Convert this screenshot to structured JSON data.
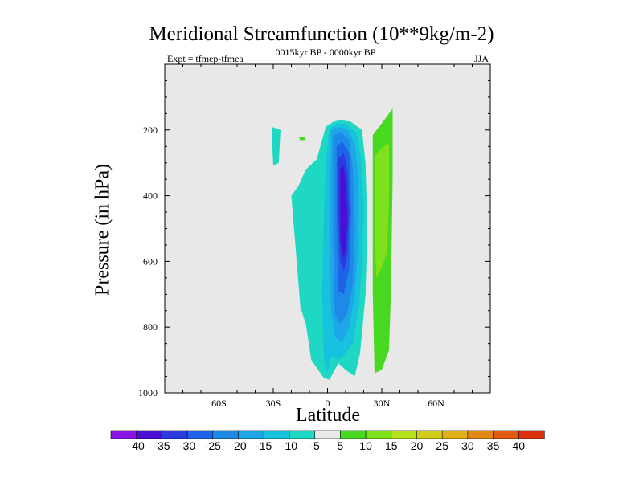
{
  "chart_data": {
    "type": "heatmap",
    "title": "Meridional Streamfunction (10**9kg/m-2)",
    "subtitle_left": "Expt = tfmep-tfmea",
    "subtitle_center": "0015kyr BP - 0000kyr BP",
    "subtitle_right": "JJA",
    "xlabel": "Latitude",
    "ylabel": "Pressure (in hPa)",
    "xlim": [
      -90,
      90
    ],
    "ylim": [
      1000,
      0
    ],
    "x_ticks": [
      {
        "value": -60,
        "label": "60S"
      },
      {
        "value": -30,
        "label": "30S"
      },
      {
        "value": 0,
        "label": "0"
      },
      {
        "value": 30,
        "label": "30N"
      },
      {
        "value": 60,
        "label": "60N"
      }
    ],
    "y_ticks": [
      200,
      400,
      600,
      800,
      1000
    ],
    "background_color": "#e8e8e8",
    "colorbar": {
      "levels": [
        -40,
        -35,
        -30,
        -25,
        -20,
        -15,
        -10,
        -5,
        5,
        10,
        15,
        20,
        25,
        30,
        35,
        40
      ],
      "colors": [
        "#8a14e6",
        "#4b0fd4",
        "#2a3ce0",
        "#1f64e8",
        "#1e8ae8",
        "#1ea6e6",
        "#17c2de",
        "#1ed8c4",
        "#e8e8e8",
        "#48d820",
        "#7fe01c",
        "#b4e01c",
        "#d0cc1a",
        "#e0b018",
        "#e08a14",
        "#e05a10",
        "#dc300c"
      ]
    },
    "regions": [
      {
        "level_index": 7,
        "lat": [
          -31,
          -26,
          -27,
          -30,
          -31
        ],
        "p": [
          190,
          200,
          300,
          310,
          190
        ]
      },
      {
        "level_index": 9,
        "lat": [
          -16,
          -13,
          -12,
          -15,
          -16
        ],
        "p": [
          220,
          222,
          230,
          232,
          220
        ]
      },
      {
        "level_index": 7,
        "lat": [
          -1,
          3,
          7,
          13,
          19,
          21,
          22,
          21,
          18,
          15,
          10,
          6,
          1,
          -2,
          -9,
          -12,
          -15,
          -20,
          -16,
          -12,
          -6,
          -3,
          -1
        ],
        "p": [
          190,
          175,
          170,
          175,
          200,
          300,
          500,
          700,
          880,
          950,
          930,
          910,
          960,
          955,
          900,
          790,
          740,
          400,
          370,
          320,
          290,
          230,
          190
        ]
      },
      {
        "level_index": 6,
        "lat": [
          1,
          5,
          10,
          16,
          19,
          20,
          19,
          17,
          14,
          10,
          6,
          2,
          0,
          -2,
          -3,
          -2,
          -1,
          1
        ],
        "p": [
          195,
          180,
          180,
          210,
          300,
          450,
          620,
          750,
          850,
          880,
          900,
          890,
          940,
          900,
          700,
          450,
          300,
          195
        ]
      },
      {
        "level_index": 5,
        "lat": [
          2,
          6,
          11,
          15,
          17,
          17,
          15,
          12,
          8,
          4,
          2,
          1,
          2
        ],
        "p": [
          200,
          190,
          200,
          240,
          350,
          550,
          700,
          800,
          850,
          830,
          750,
          500,
          200
        ]
      },
      {
        "level_index": 4,
        "lat": [
          3,
          7,
          12,
          14,
          15,
          14,
          11,
          7,
          4,
          3,
          3
        ],
        "p": [
          220,
          205,
          230,
          320,
          500,
          670,
          760,
          790,
          760,
          500,
          220
        ]
      },
      {
        "level_index": 3,
        "lat": [
          5,
          8,
          12,
          13,
          12,
          9,
          6,
          5,
          5
        ],
        "p": [
          250,
          235,
          270,
          450,
          620,
          700,
          690,
          500,
          250
        ]
      },
      {
        "level_index": 2,
        "lat": [
          6,
          9,
          11,
          12,
          11,
          9,
          7,
          6,
          6
        ],
        "p": [
          285,
          270,
          320,
          450,
          580,
          630,
          600,
          450,
          285
        ]
      },
      {
        "level_index": 1,
        "lat": [
          7,
          9,
          10,
          11,
          10,
          9,
          7,
          7
        ],
        "p": [
          320,
          310,
          370,
          470,
          560,
          590,
          540,
          320
        ]
      },
      {
        "level_index": 9,
        "lat": [
          25,
          30,
          36,
          36,
          35,
          34,
          30,
          26,
          25,
          25
        ],
        "p": [
          215,
          180,
          135,
          350,
          700,
          870,
          930,
          940,
          700,
          215
        ]
      },
      {
        "level_index": 10,
        "lat": [
          26,
          30,
          34,
          34,
          33,
          30,
          27,
          26,
          26
        ],
        "p": [
          280,
          255,
          240,
          400,
          570,
          620,
          650,
          500,
          280
        ]
      }
    ]
  }
}
